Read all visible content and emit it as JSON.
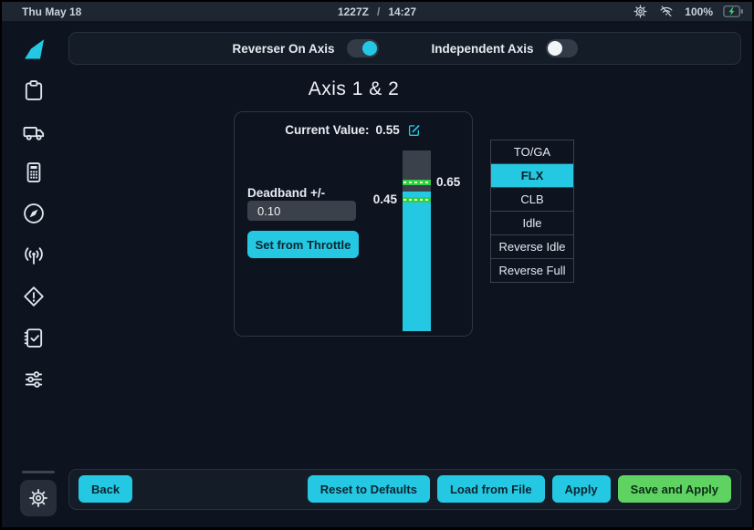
{
  "statusbar": {
    "date": "Thu May 18",
    "utc_time": "1227Z",
    "time_separator": "/",
    "local_time": "14:27",
    "battery_percent": "100%"
  },
  "toggles": {
    "reverser": {
      "label": "Reverser On Axis",
      "on": true
    },
    "independent": {
      "label": "Independent Axis",
      "on": false
    }
  },
  "page": {
    "title": "Axis 1 & 2"
  },
  "calibration": {
    "current_value_label": "Current Value:",
    "current_value": "0.55",
    "deadband_label": "Deadband +/-",
    "deadband_value": "0.10",
    "set_from_throttle_label": "Set from Throttle",
    "gauge": {
      "upper_marker_label": "0.65",
      "lower_marker_label": "0.45",
      "upper_marker": 0.65,
      "lower_marker": 0.45,
      "current_value": 0.55,
      "range_min": -1,
      "range_max": 1
    }
  },
  "detents": {
    "selected": "FLX",
    "items": [
      {
        "label": "TO/GA"
      },
      {
        "label": "FLX"
      },
      {
        "label": "CLB"
      },
      {
        "label": "Idle"
      },
      {
        "label": "Reverse Idle"
      },
      {
        "label": "Reverse Full"
      }
    ]
  },
  "footer": {
    "back": "Back",
    "reset": "Reset to Defaults",
    "load": "Load from File",
    "apply": "Apply",
    "save": "Save and Apply"
  },
  "colors": {
    "accent_cyan": "#24c8e2",
    "save_green": "#5ed361",
    "marker_green": "#2fd04b",
    "background": "#0d1420",
    "panel": "#141c28"
  }
}
